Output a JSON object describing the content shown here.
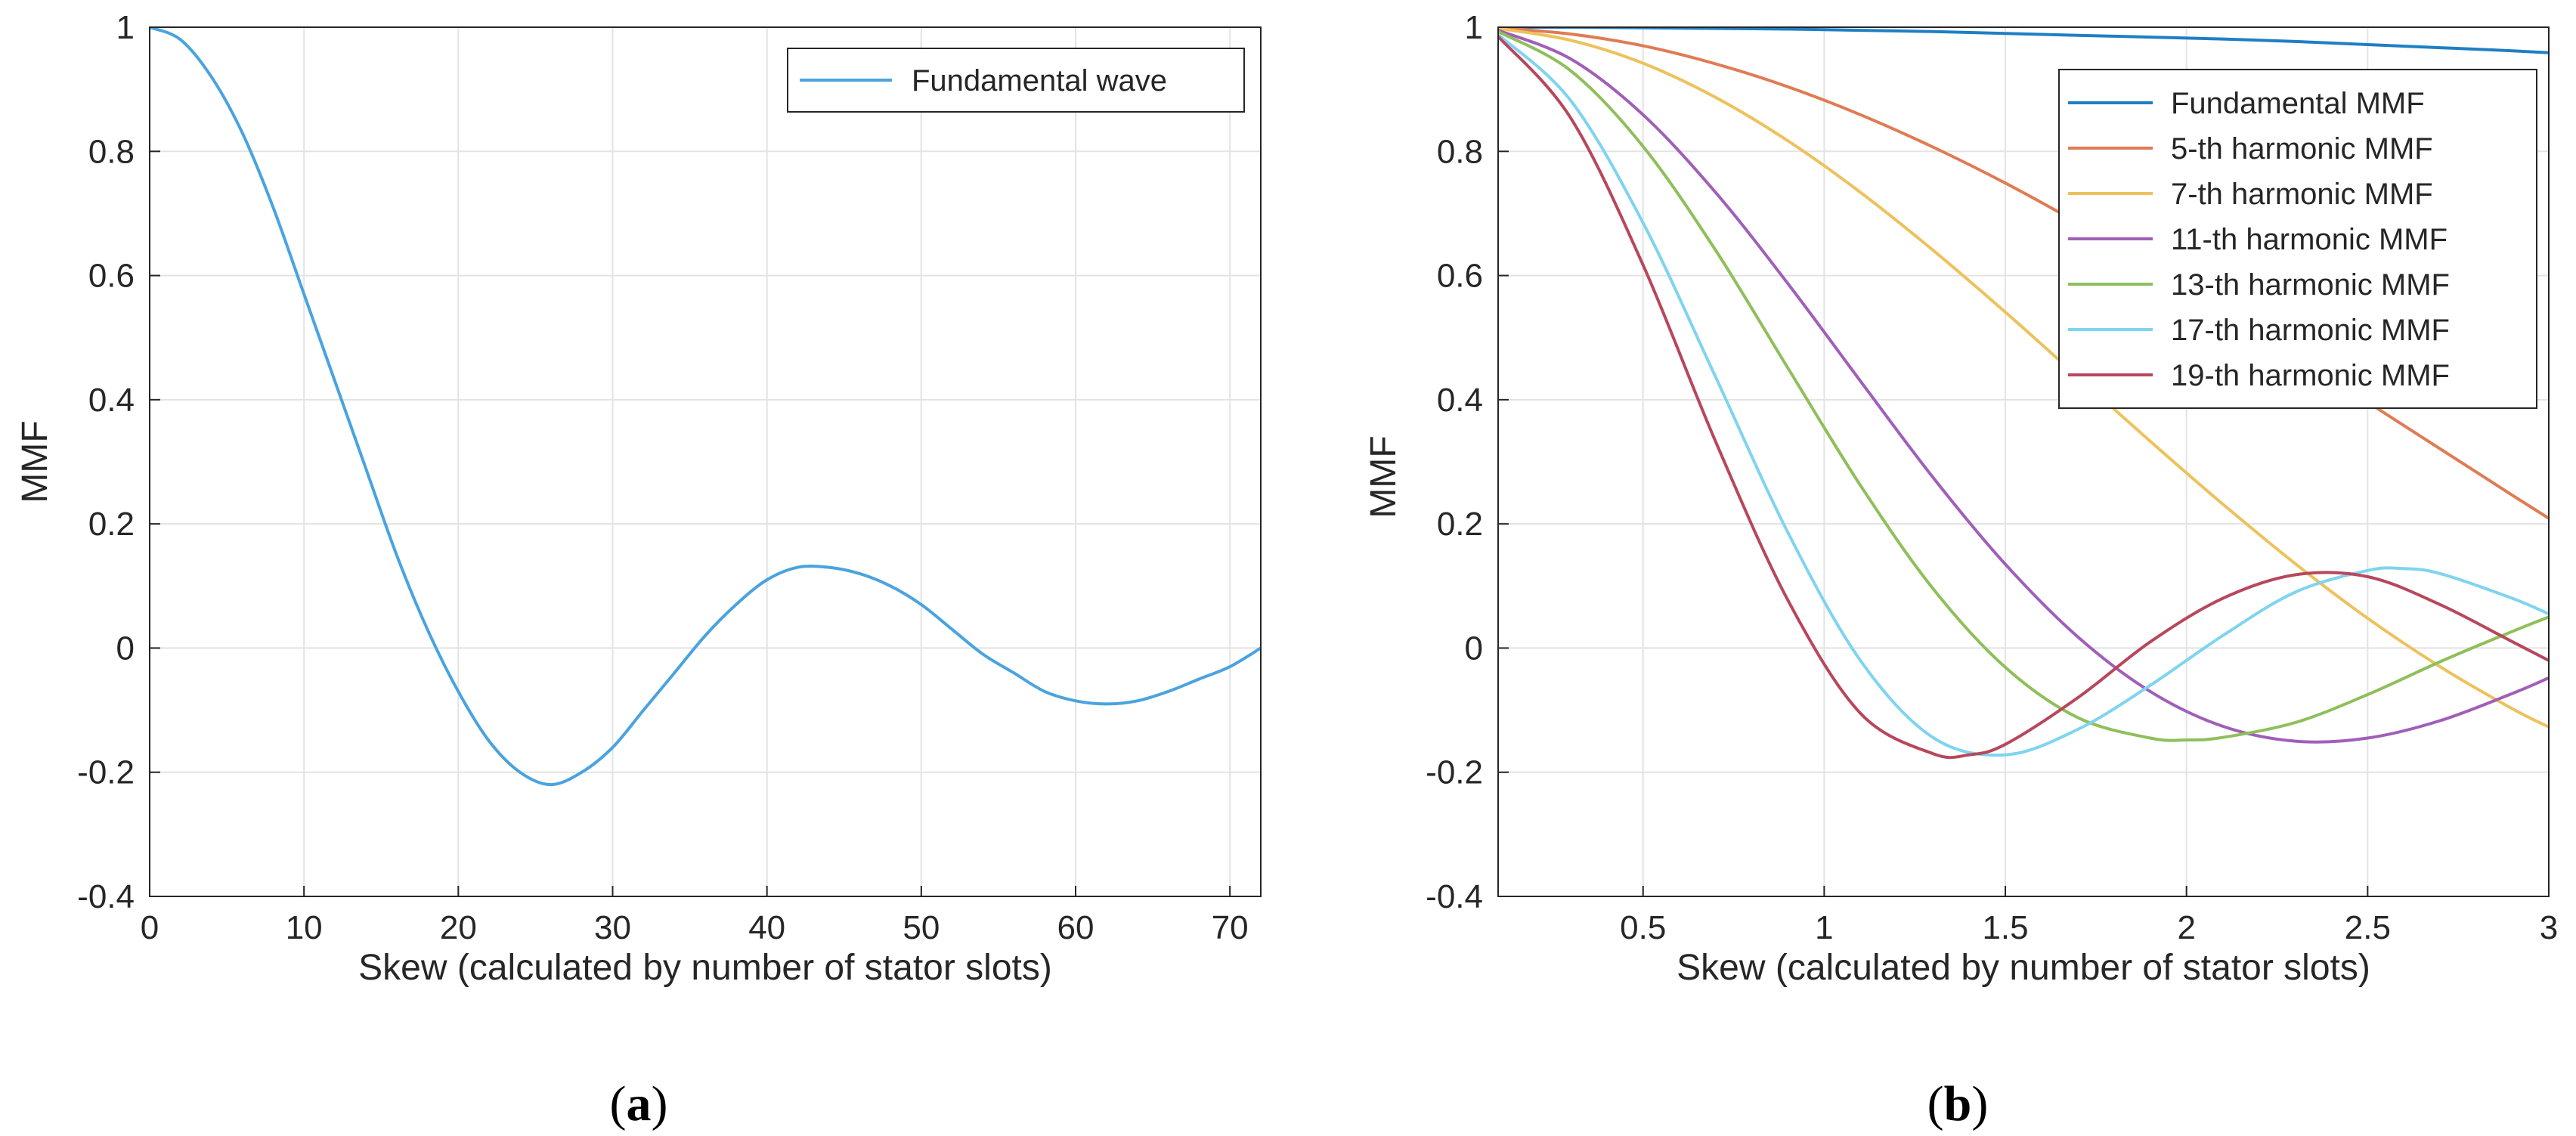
{
  "chart_data": [
    {
      "type": "line",
      "panel_label_open": "(",
      "panel_label_letter": "a",
      "panel_label_close": ")",
      "xlabel": "Skew (calculated by number of stator slots)",
      "ylabel": "MMF",
      "xlim": [
        0,
        72
      ],
      "ylim": [
        -0.4,
        1
      ],
      "xticks": [
        0,
        10,
        20,
        30,
        40,
        50,
        60,
        70
      ],
      "xtick_labels": [
        "0",
        "10",
        "20",
        "30",
        "40",
        "50",
        "60",
        "70"
      ],
      "yticks": [
        -0.4,
        -0.2,
        0,
        0.2,
        0.4,
        0.6,
        0.8,
        1
      ],
      "ytick_labels": [
        "-0.4",
        "-0.2",
        "0",
        "0.2",
        "0.4",
        "0.6",
        "0.8",
        "1"
      ],
      "grid": true,
      "legend_position": "top-right",
      "series": [
        {
          "name": "Fundamental wave",
          "color": "#4aa3df",
          "x": [
            0,
            2,
            4,
            6,
            8,
            10,
            12,
            14,
            16,
            18,
            20,
            22,
            24,
            26,
            28,
            30,
            32,
            34,
            36,
            38,
            40,
            42,
            44,
            46,
            48,
            50,
            52,
            54,
            56,
            58,
            60,
            62,
            64,
            66,
            68,
            70,
            72
          ],
          "y": [
            1.0,
            0.98,
            0.92,
            0.83,
            0.71,
            0.57,
            0.43,
            0.29,
            0.15,
            0.03,
            -0.07,
            -0.15,
            -0.2,
            -0.22,
            -0.2,
            -0.16,
            -0.1,
            -0.04,
            0.02,
            0.07,
            0.11,
            0.13,
            0.13,
            0.12,
            0.1,
            0.07,
            0.03,
            -0.01,
            -0.04,
            -0.07,
            -0.085,
            -0.09,
            -0.085,
            -0.07,
            -0.05,
            -0.03,
            0.0
          ]
        }
      ]
    },
    {
      "type": "line",
      "panel_label_open": "(",
      "panel_label_letter": "b",
      "panel_label_close": ")",
      "xlabel": "Skew (calculated by number of stator slots)",
      "ylabel": "MMF",
      "xlim": [
        0.1,
        3
      ],
      "ylim": [
        -0.4,
        1
      ],
      "xticks": [
        0.5,
        1,
        1.5,
        2,
        2.5,
        3
      ],
      "xtick_labels": [
        "0.5",
        "1",
        "1.5",
        "2",
        "2.5",
        "3"
      ],
      "yticks": [
        -0.4,
        -0.2,
        0,
        0.2,
        0.4,
        0.6,
        0.8,
        1
      ],
      "ytick_labels": [
        "-0.4",
        "-0.2",
        "0",
        "0.2",
        "0.4",
        "0.6",
        "0.8",
        "1"
      ],
      "grid": true,
      "legend_position": "top-right",
      "series": [
        {
          "name": "Fundamental MMF",
          "color": "#1f7fc4",
          "harmonic": 1,
          "x": [
            0.1,
            0.3,
            0.5,
            0.7,
            0.9,
            1.1,
            1.3,
            1.5,
            1.7,
            1.9,
            2.1,
            2.3,
            2.5,
            2.7,
            2.9,
            3.0
          ],
          "y": [
            1.0,
            1.0,
            0.999,
            0.998,
            0.997,
            0.995,
            0.993,
            0.99,
            0.987,
            0.984,
            0.981,
            0.977,
            0.972,
            0.967,
            0.962,
            0.959
          ]
        },
        {
          "name": "5-th harmonic MMF",
          "color": "#e07b54",
          "harmonic": 5,
          "x": [
            0.1,
            0.3,
            0.5,
            0.7,
            0.9,
            1.1,
            1.3,
            1.5,
            1.7,
            1.9,
            2.1,
            2.3,
            2.5,
            2.7,
            2.9,
            3.0
          ],
          "y": [
            0.999,
            0.989,
            0.97,
            0.941,
            0.904,
            0.859,
            0.807,
            0.749,
            0.685,
            0.617,
            0.545,
            0.471,
            0.396,
            0.321,
            0.246,
            0.209
          ]
        },
        {
          "name": "7-th harmonic MMF",
          "color": "#edc25c",
          "harmonic": 7,
          "x": [
            0.1,
            0.3,
            0.5,
            0.7,
            0.9,
            1.1,
            1.3,
            1.5,
            1.7,
            1.9,
            2.1,
            2.3,
            2.5,
            2.7,
            2.9,
            3.0
          ],
          "y": [
            0.998,
            0.979,
            0.942,
            0.887,
            0.817,
            0.734,
            0.641,
            0.541,
            0.437,
            0.333,
            0.232,
            0.136,
            0.048,
            -0.03,
            -0.098,
            -0.127
          ]
        },
        {
          "name": "11-th harmonic MMF",
          "color": "#a05fb8",
          "harmonic": 11,
          "x": [
            0.1,
            0.3,
            0.5,
            0.7,
            0.9,
            1.1,
            1.3,
            1.5,
            1.7,
            1.9,
            2.1,
            2.3,
            2.5,
            2.7,
            2.9,
            3.0
          ],
          "y": [
            0.995,
            0.949,
            0.859,
            0.734,
            0.587,
            0.43,
            0.275,
            0.135,
            0.018,
            -0.07,
            -0.126,
            -0.15,
            -0.145,
            -0.117,
            -0.073,
            -0.048
          ]
        },
        {
          "name": "13-th harmonic MMF",
          "color": "#8fbf5a",
          "harmonic": 13,
          "x": [
            0.1,
            0.3,
            0.5,
            0.7,
            0.9,
            1.1,
            1.3,
            1.5,
            1.7,
            1.9,
            2.0,
            2.1,
            2.3,
            2.5,
            2.7,
            2.9,
            3.0
          ],
          "y": [
            0.993,
            0.93,
            0.808,
            0.641,
            0.451,
            0.262,
            0.096,
            -0.031,
            -0.112,
            -0.145,
            -0.148,
            -0.144,
            -0.12,
            -0.075,
            -0.022,
            0.027,
            0.05
          ]
        },
        {
          "name": "17-th harmonic MMF",
          "color": "#7fd4ef",
          "harmonic": 17,
          "x": [
            0.1,
            0.3,
            0.5,
            0.7,
            0.9,
            1.1,
            1.3,
            1.5,
            1.7,
            1.9,
            2.1,
            2.3,
            2.5,
            2.6,
            2.7,
            2.9,
            3.0
          ],
          "y": [
            0.988,
            0.882,
            0.685,
            0.437,
            0.186,
            -0.02,
            -0.144,
            -0.172,
            -0.131,
            -0.06,
            0.02,
            0.09,
            0.125,
            0.128,
            0.12,
            0.08,
            0.055
          ]
        },
        {
          "name": "19-th harmonic MMF",
          "color": "#b8475c",
          "harmonic": 19,
          "x": [
            0.1,
            0.3,
            0.5,
            0.7,
            0.9,
            1.1,
            1.3,
            1.4,
            1.5,
            1.7,
            1.9,
            2.1,
            2.3,
            2.5,
            2.7,
            2.9,
            3.0
          ],
          "y": [
            0.985,
            0.854,
            0.617,
            0.333,
            0.077,
            -0.105,
            -0.17,
            -0.172,
            -0.155,
            -0.08,
            0.01,
            0.08,
            0.118,
            0.115,
            0.07,
            0.01,
            -0.02
          ]
        }
      ]
    }
  ]
}
